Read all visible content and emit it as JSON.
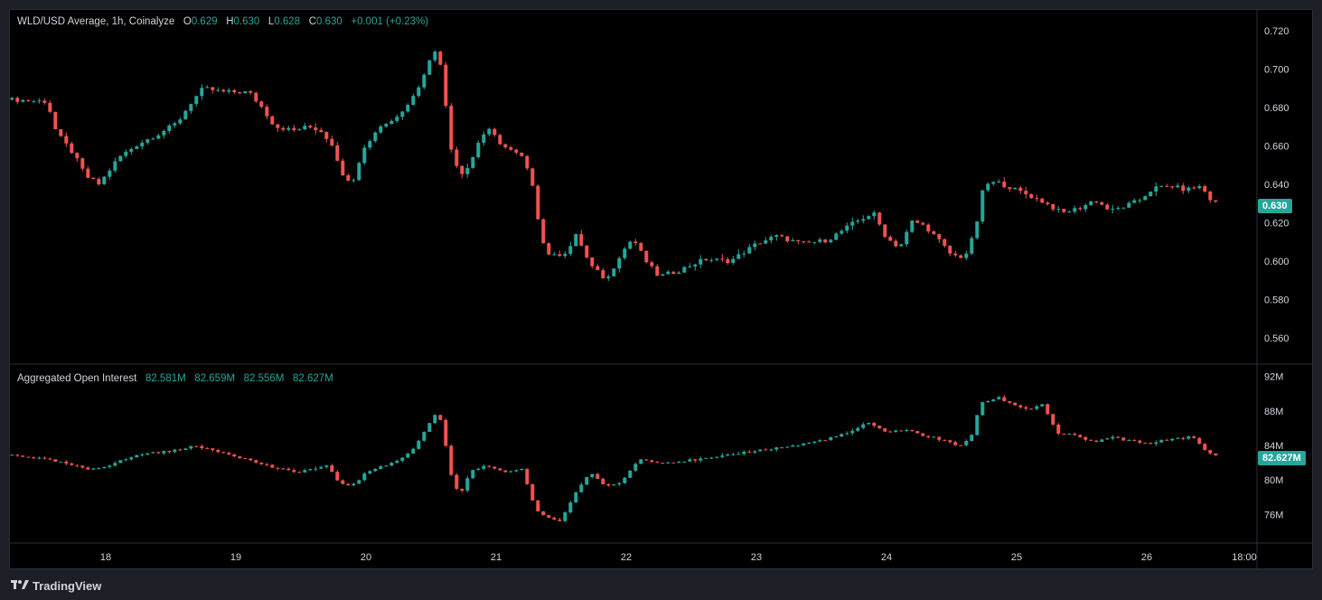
{
  "price_legend": {
    "title": "WLD/USD Average, 1h, Coinalyze",
    "o_label": "O",
    "o_val": "0.629",
    "h_label": "H",
    "h_val": "0.630",
    "l_label": "L",
    "l_val": "0.628",
    "c_label": "C",
    "c_val": "0.630",
    "change": "+0.001 (+0.23%)"
  },
  "oi_legend": {
    "title": "Aggregated Open Interest",
    "v1": "82.581M",
    "v2": "82.659M",
    "v3": "82.556M",
    "v4": "82.627M"
  },
  "price_tag": "0.630",
  "oi_tag": "82.627M",
  "brand": "TradingView",
  "colors": {
    "up": "#26a69a",
    "down": "#ef5350",
    "grid": "#1e222d",
    "text": "#d1d4dc"
  },
  "chart_data": [
    {
      "type": "candlestick",
      "title": "WLD/USD Average, 1h, Coinalyze",
      "y_ticks": [
        "0.720",
        "0.700",
        "0.680",
        "0.660",
        "0.640",
        "0.620",
        "0.600",
        "0.580",
        "0.560"
      ],
      "ylim": [
        0.552,
        0.726
      ],
      "x_ticks": [
        "18",
        "19",
        "20",
        "21",
        "22",
        "23",
        "24",
        "25",
        "26",
        "18:00"
      ],
      "last_value": 0.63,
      "anchors": [
        [
          17.28,
          0.684
        ],
        [
          17.55,
          0.683
        ],
        [
          17.62,
          0.667
        ],
        [
          17.75,
          0.656
        ],
        [
          17.85,
          0.644
        ],
        [
          17.95,
          0.64
        ],
        [
          18.1,
          0.654
        ],
        [
          18.25,
          0.661
        ],
        [
          18.4,
          0.666
        ],
        [
          18.55,
          0.672
        ],
        [
          18.65,
          0.682
        ],
        [
          18.75,
          0.69
        ],
        [
          18.9,
          0.688
        ],
        [
          19.1,
          0.688
        ],
        [
          19.2,
          0.68
        ],
        [
          19.3,
          0.67
        ],
        [
          19.45,
          0.668
        ],
        [
          19.55,
          0.67
        ],
        [
          19.65,
          0.668
        ],
        [
          19.75,
          0.66
        ],
        [
          19.82,
          0.644
        ],
        [
          19.9,
          0.642
        ],
        [
          19.97,
          0.657
        ],
        [
          20.1,
          0.67
        ],
        [
          20.2,
          0.673
        ],
        [
          20.35,
          0.684
        ],
        [
          20.45,
          0.697
        ],
        [
          20.52,
          0.712
        ],
        [
          20.58,
          0.7
        ],
        [
          20.65,
          0.66
        ],
        [
          20.72,
          0.645
        ],
        [
          20.8,
          0.65
        ],
        [
          20.88,
          0.665
        ],
        [
          20.95,
          0.668
        ],
        [
          21.05,
          0.66
        ],
        [
          21.2,
          0.654
        ],
        [
          21.28,
          0.64
        ],
        [
          21.35,
          0.611
        ],
        [
          21.42,
          0.602
        ],
        [
          21.55,
          0.605
        ],
        [
          21.62,
          0.614
        ],
        [
          21.72,
          0.598
        ],
        [
          21.85,
          0.59
        ],
        [
          21.95,
          0.603
        ],
        [
          22.05,
          0.612
        ],
        [
          22.15,
          0.6
        ],
        [
          22.25,
          0.592
        ],
        [
          22.4,
          0.595
        ],
        [
          22.6,
          0.601
        ],
        [
          22.8,
          0.6
        ],
        [
          23.0,
          0.609
        ],
        [
          23.15,
          0.613
        ],
        [
          23.35,
          0.609
        ],
        [
          23.55,
          0.611
        ],
        [
          23.75,
          0.62
        ],
        [
          23.9,
          0.625
        ],
        [
          24.0,
          0.612
        ],
        [
          24.1,
          0.607
        ],
        [
          24.2,
          0.621
        ],
        [
          24.3,
          0.618
        ],
        [
          24.4,
          0.611
        ],
        [
          24.5,
          0.603
        ],
        [
          24.6,
          0.602
        ],
        [
          24.68,
          0.615
        ],
        [
          24.75,
          0.64
        ],
        [
          24.85,
          0.641
        ],
        [
          25.0,
          0.637
        ],
        [
          25.2,
          0.631
        ],
        [
          25.35,
          0.625
        ],
        [
          25.5,
          0.628
        ],
        [
          25.6,
          0.632
        ],
        [
          25.72,
          0.626
        ],
        [
          25.85,
          0.629
        ],
        [
          25.95,
          0.632
        ],
        [
          26.05,
          0.638
        ],
        [
          26.2,
          0.639
        ],
        [
          26.3,
          0.637
        ],
        [
          26.4,
          0.639
        ],
        [
          26.45,
          0.636
        ],
        [
          26.5,
          0.631
        ],
        [
          26.55,
          0.63
        ]
      ]
    },
    {
      "type": "candlestick",
      "title": "Aggregated Open Interest",
      "y_ticks": [
        "92M",
        "88M",
        "84M",
        "80M",
        "76M"
      ],
      "ylim": [
        73.2,
        92.6
      ],
      "last_value": 82.627,
      "anchors": [
        [
          17.28,
          82.9
        ],
        [
          17.45,
          82.6
        ],
        [
          17.6,
          82.2
        ],
        [
          17.75,
          81.7
        ],
        [
          17.85,
          81.2
        ],
        [
          18.0,
          81.6
        ],
        [
          18.15,
          82.4
        ],
        [
          18.3,
          83.1
        ],
        [
          18.5,
          83.3
        ],
        [
          18.65,
          83.9
        ],
        [
          18.8,
          83.6
        ],
        [
          19.0,
          82.8
        ],
        [
          19.1,
          82.3
        ],
        [
          19.3,
          81.4
        ],
        [
          19.45,
          80.9
        ],
        [
          19.6,
          81.3
        ],
        [
          19.7,
          81.6
        ],
        [
          19.8,
          79.6
        ],
        [
          19.9,
          79.4
        ],
        [
          20.0,
          80.8
        ],
        [
          20.1,
          81.6
        ],
        [
          20.2,
          81.9
        ],
        [
          20.35,
          83.3
        ],
        [
          20.45,
          85.6
        ],
        [
          20.52,
          87.6
        ],
        [
          20.58,
          86.9
        ],
        [
          20.65,
          80.8
        ],
        [
          20.72,
          78.2
        ],
        [
          20.8,
          80.9
        ],
        [
          20.9,
          81.6
        ],
        [
          21.0,
          81.2
        ],
        [
          21.1,
          80.9
        ],
        [
          21.2,
          81.2
        ],
        [
          21.3,
          76.6
        ],
        [
          21.4,
          75.6
        ],
        [
          21.5,
          75.2
        ],
        [
          21.6,
          78.3
        ],
        [
          21.72,
          80.9
        ],
        [
          21.85,
          79.2
        ],
        [
          21.95,
          79.6
        ],
        [
          22.1,
          82.4
        ],
        [
          22.3,
          82.0
        ],
        [
          22.5,
          82.3
        ],
        [
          22.7,
          82.6
        ],
        [
          22.9,
          83.2
        ],
        [
          23.1,
          83.6
        ],
        [
          23.3,
          84.0
        ],
        [
          23.5,
          84.6
        ],
        [
          23.7,
          85.4
        ],
        [
          23.85,
          86.6
        ],
        [
          24.0,
          85.6
        ],
        [
          24.15,
          85.8
        ],
        [
          24.3,
          85.1
        ],
        [
          24.45,
          84.6
        ],
        [
          24.55,
          83.8
        ],
        [
          24.65,
          85.0
        ],
        [
          24.72,
          88.8
        ],
        [
          24.85,
          89.6
        ],
        [
          25.0,
          88.6
        ],
        [
          25.1,
          88.2
        ],
        [
          25.2,
          88.8
        ],
        [
          25.32,
          85.3
        ],
        [
          25.45,
          85.2
        ],
        [
          25.6,
          84.3
        ],
        [
          25.72,
          85.0
        ],
        [
          25.85,
          84.6
        ],
        [
          26.0,
          84.2
        ],
        [
          26.2,
          84.8
        ],
        [
          26.35,
          85.0
        ],
        [
          26.45,
          83.4
        ],
        [
          26.55,
          82.627
        ]
      ]
    }
  ]
}
